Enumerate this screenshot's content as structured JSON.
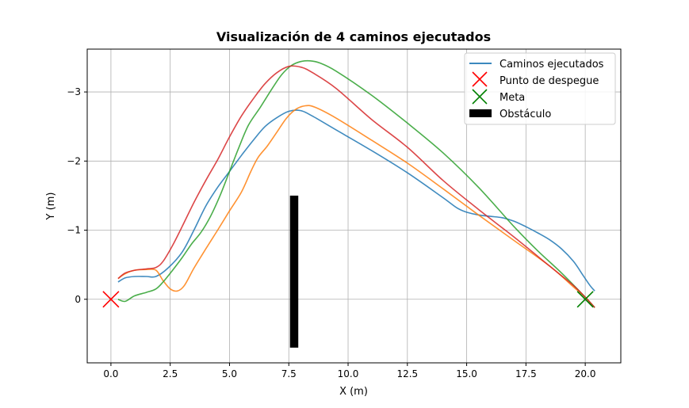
{
  "chart_data": {
    "type": "line",
    "title": "Visualización de 4 caminos ejecutados",
    "xlabel": "X (m)",
    "ylabel": "Y (m)",
    "xlim": [
      -1.0,
      21.5
    ],
    "ylim": [
      0.92,
      -3.62
    ],
    "y_axis_inverted": true,
    "grid": true,
    "legend_position": "top-right",
    "x_ticks": [
      0,
      2.5,
      5,
      7.5,
      10,
      12.5,
      15,
      17.5,
      20
    ],
    "x_tick_labels": [
      "0.0",
      "2.5",
      "5.0",
      "7.5",
      "10.0",
      "12.5",
      "15.0",
      "17.5",
      "20.0"
    ],
    "y_ticks": [
      0,
      -1,
      -2,
      -3
    ],
    "y_tick_labels": [
      "0",
      "−1",
      "−2",
      "−3"
    ],
    "legend": [
      {
        "label": "Caminos ejecutados",
        "kind": "line",
        "color": "#1f77b4"
      },
      {
        "label": "Punto de despegue",
        "kind": "x",
        "color": "#ff0000"
      },
      {
        "label": "Meta",
        "kind": "x",
        "color": "#008000"
      },
      {
        "label": "Obstáculo",
        "kind": "rect",
        "color": "#000000"
      }
    ],
    "series": [
      {
        "color": "#1f77b4",
        "points": [
          [
            0.3,
            -0.25
          ],
          [
            0.6,
            -0.31
          ],
          [
            1.0,
            -0.33
          ],
          [
            1.5,
            -0.33
          ],
          [
            1.9,
            -0.33
          ],
          [
            2.4,
            -0.45
          ],
          [
            3.0,
            -0.68
          ],
          [
            3.5,
            -1.0
          ],
          [
            4.0,
            -1.35
          ],
          [
            4.5,
            -1.62
          ],
          [
            5.0,
            -1.85
          ],
          [
            5.5,
            -2.08
          ],
          [
            6.0,
            -2.3
          ],
          [
            6.5,
            -2.5
          ],
          [
            7.0,
            -2.63
          ],
          [
            7.5,
            -2.72
          ],
          [
            8.0,
            -2.73
          ],
          [
            8.5,
            -2.65
          ],
          [
            9.5,
            -2.45
          ],
          [
            11.0,
            -2.15
          ],
          [
            12.5,
            -1.83
          ],
          [
            14.0,
            -1.47
          ],
          [
            14.6,
            -1.32
          ],
          [
            15.0,
            -1.26
          ],
          [
            15.5,
            -1.22
          ],
          [
            16.0,
            -1.2
          ],
          [
            16.5,
            -1.18
          ],
          [
            17.0,
            -1.13
          ],
          [
            17.5,
            -1.05
          ],
          [
            18.0,
            -0.96
          ],
          [
            18.5,
            -0.86
          ],
          [
            19.0,
            -0.73
          ],
          [
            19.5,
            -0.55
          ],
          [
            19.9,
            -0.35
          ],
          [
            20.2,
            -0.2
          ],
          [
            20.4,
            -0.12
          ]
        ]
      },
      {
        "color": "#ff7f0e",
        "points": [
          [
            0.3,
            -0.3
          ],
          [
            0.6,
            -0.37
          ],
          [
            1.0,
            -0.42
          ],
          [
            1.5,
            -0.43
          ],
          [
            1.9,
            -0.42
          ],
          [
            2.2,
            -0.27
          ],
          [
            2.5,
            -0.15
          ],
          [
            2.8,
            -0.12
          ],
          [
            3.1,
            -0.2
          ],
          [
            3.5,
            -0.45
          ],
          [
            4.0,
            -0.73
          ],
          [
            4.5,
            -1.0
          ],
          [
            5.0,
            -1.28
          ],
          [
            5.5,
            -1.55
          ],
          [
            5.9,
            -1.85
          ],
          [
            6.2,
            -2.05
          ],
          [
            6.6,
            -2.22
          ],
          [
            7.0,
            -2.42
          ],
          [
            7.4,
            -2.62
          ],
          [
            7.8,
            -2.75
          ],
          [
            8.2,
            -2.8
          ],
          [
            8.6,
            -2.78
          ],
          [
            9.5,
            -2.62
          ],
          [
            11.0,
            -2.3
          ],
          [
            12.5,
            -1.97
          ],
          [
            14.0,
            -1.6
          ],
          [
            15.5,
            -1.22
          ],
          [
            17.0,
            -0.85
          ],
          [
            18.5,
            -0.48
          ],
          [
            19.5,
            -0.18
          ],
          [
            20.0,
            -0.03
          ],
          [
            20.4,
            0.12
          ]
        ]
      },
      {
        "color": "#2ca02c",
        "points": [
          [
            0.3,
            0.0
          ],
          [
            0.6,
            0.03
          ],
          [
            1.0,
            -0.05
          ],
          [
            1.5,
            -0.1
          ],
          [
            1.9,
            -0.15
          ],
          [
            2.2,
            -0.25
          ],
          [
            2.6,
            -0.42
          ],
          [
            3.0,
            -0.6
          ],
          [
            3.4,
            -0.8
          ],
          [
            3.8,
            -0.97
          ],
          [
            4.2,
            -1.2
          ],
          [
            4.6,
            -1.5
          ],
          [
            5.0,
            -1.85
          ],
          [
            5.4,
            -2.2
          ],
          [
            5.8,
            -2.52
          ],
          [
            6.3,
            -2.78
          ],
          [
            6.8,
            -3.05
          ],
          [
            7.2,
            -3.25
          ],
          [
            7.6,
            -3.38
          ],
          [
            8.0,
            -3.44
          ],
          [
            8.4,
            -3.45
          ],
          [
            8.8,
            -3.42
          ],
          [
            9.5,
            -3.3
          ],
          [
            11.0,
            -2.95
          ],
          [
            12.5,
            -2.55
          ],
          [
            14.0,
            -2.12
          ],
          [
            15.5,
            -1.62
          ],
          [
            17.0,
            -1.05
          ],
          [
            18.0,
            -0.7
          ],
          [
            19.0,
            -0.38
          ],
          [
            20.0,
            -0.03
          ],
          [
            20.4,
            0.12
          ]
        ]
      },
      {
        "color": "#d62728",
        "points": [
          [
            0.3,
            -0.3
          ],
          [
            0.6,
            -0.38
          ],
          [
            1.0,
            -0.42
          ],
          [
            1.5,
            -0.44
          ],
          [
            1.9,
            -0.46
          ],
          [
            2.2,
            -0.55
          ],
          [
            2.6,
            -0.78
          ],
          [
            3.0,
            -1.05
          ],
          [
            3.5,
            -1.4
          ],
          [
            4.0,
            -1.72
          ],
          [
            4.5,
            -2.02
          ],
          [
            5.0,
            -2.35
          ],
          [
            5.5,
            -2.65
          ],
          [
            6.0,
            -2.9
          ],
          [
            6.5,
            -3.12
          ],
          [
            7.0,
            -3.28
          ],
          [
            7.5,
            -3.37
          ],
          [
            8.0,
            -3.36
          ],
          [
            8.5,
            -3.28
          ],
          [
            9.5,
            -3.05
          ],
          [
            11.0,
            -2.6
          ],
          [
            12.5,
            -2.2
          ],
          [
            14.0,
            -1.72
          ],
          [
            15.5,
            -1.3
          ],
          [
            17.0,
            -0.9
          ],
          [
            18.5,
            -0.48
          ],
          [
            19.5,
            -0.2
          ],
          [
            20.0,
            -0.03
          ],
          [
            20.4,
            0.12
          ]
        ]
      }
    ],
    "start_marker": {
      "x": 0,
      "y": 0,
      "color": "#ff0000"
    },
    "goal_marker": {
      "x": 20,
      "y": 0,
      "color": "#008000"
    },
    "obstacle": {
      "x0": 7.55,
      "x1": 7.9,
      "y0": -1.5,
      "y1": 0.7,
      "color": "#000000"
    }
  }
}
